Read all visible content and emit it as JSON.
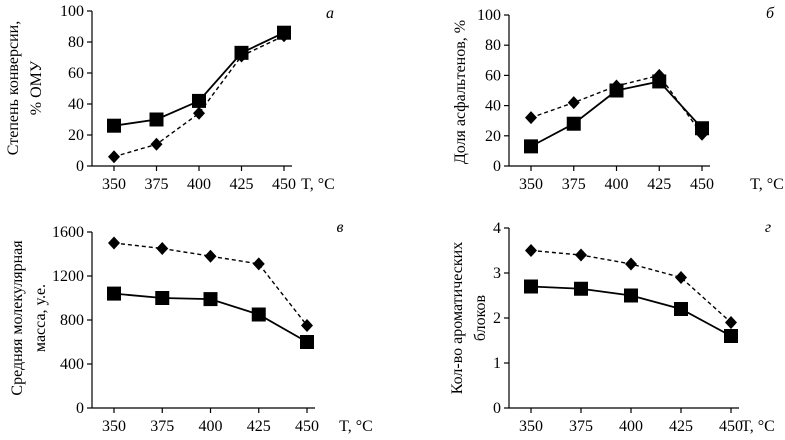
{
  "chart_data": [
    {
      "panel": "а",
      "type": "line",
      "ylabel_lines": [
        "Степень конверсии,",
        "% ОМУ"
      ],
      "xlabel": "T, °C",
      "categories": [
        "350",
        "375",
        "400",
        "425",
        "450"
      ],
      "ylim": [
        0,
        100
      ],
      "yticks": [
        "0",
        "20",
        "40",
        "60",
        "80",
        "100"
      ],
      "series": [
        {
          "marker": "square",
          "line": "solid",
          "values": [
            26,
            30,
            42,
            73,
            86
          ]
        },
        {
          "marker": "diamond",
          "line": "dashed",
          "values": [
            6,
            14,
            34,
            71,
            84
          ]
        }
      ]
    },
    {
      "panel": "б",
      "type": "line",
      "ylabel_lines": [
        "Доля асфальтенов, %"
      ],
      "xlabel": "T, °C",
      "categories": [
        "350",
        "375",
        "400",
        "425",
        "450"
      ],
      "ylim": [
        0,
        100
      ],
      "yticks": [
        "0",
        "20",
        "40",
        "60",
        "80",
        "100"
      ],
      "series": [
        {
          "marker": "square",
          "line": "solid",
          "values": [
            13,
            28,
            50,
            56,
            25
          ]
        },
        {
          "marker": "diamond",
          "line": "dashed",
          "values": [
            32,
            42,
            53,
            60,
            21
          ]
        }
      ]
    },
    {
      "panel": "в",
      "type": "line",
      "ylabel_lines": [
        "Средняя молекулярная",
        "масса, у.е."
      ],
      "xlabel": "T, °C",
      "categories": [
        "350",
        "375",
        "400",
        "425",
        "450"
      ],
      "ylim": [
        0,
        1600
      ],
      "yticks": [
        "0",
        "400",
        "800",
        "1200",
        "1600"
      ],
      "series": [
        {
          "marker": "square",
          "line": "solid",
          "values": [
            1040,
            1000,
            990,
            850,
            600
          ]
        },
        {
          "marker": "diamond",
          "line": "dashed",
          "values": [
            1500,
            1450,
            1380,
            1310,
            750
          ]
        }
      ]
    },
    {
      "panel": "г",
      "type": "line",
      "ylabel_lines": [
        "Кол-во ароматических",
        "блоков"
      ],
      "xlabel": "T, °C",
      "categories": [
        "350",
        "375",
        "400",
        "425",
        "450"
      ],
      "ylim": [
        0,
        4
      ],
      "yticks": [
        "0",
        "1",
        "2",
        "3",
        "4"
      ],
      "series": [
        {
          "marker": "square",
          "line": "solid",
          "values": [
            2.7,
            2.65,
            2.5,
            2.2,
            1.6
          ]
        },
        {
          "marker": "diamond",
          "line": "dashed",
          "values": [
            3.5,
            3.4,
            3.2,
            2.9,
            1.9
          ]
        }
      ]
    }
  ]
}
